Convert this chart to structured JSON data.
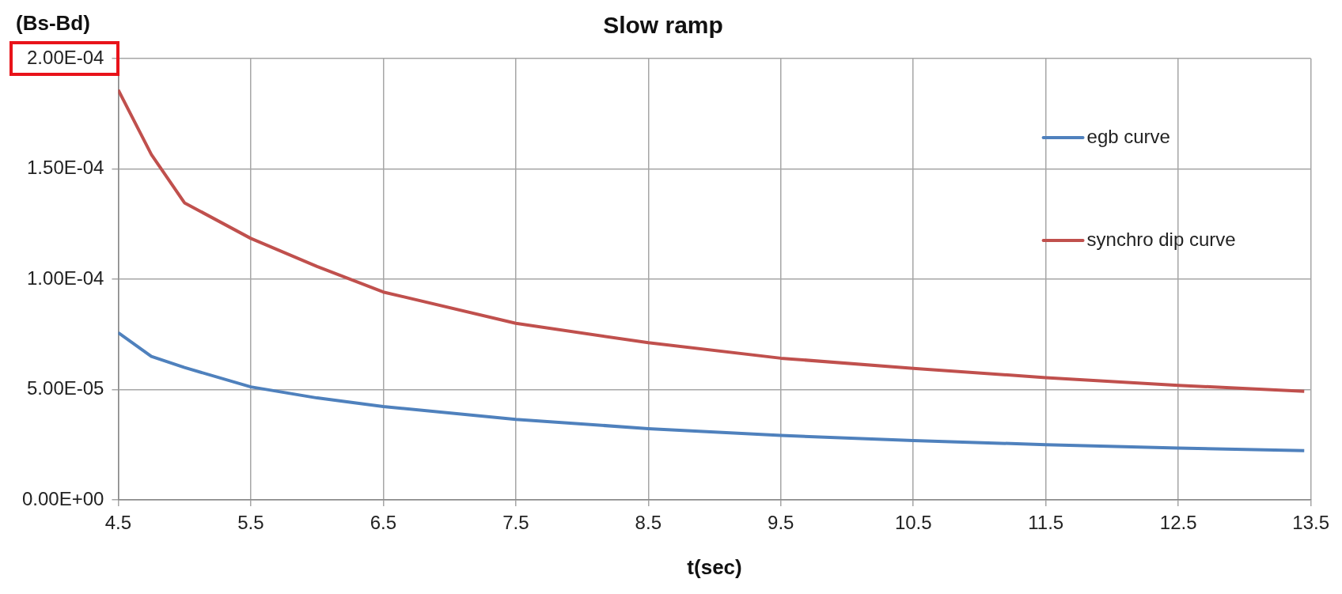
{
  "chart_data": {
    "type": "line",
    "title": "Slow ramp",
    "xlabel": "t(sec)",
    "ylabel": "(Bs-Bd)",
    "xlim": [
      4.5,
      13.5
    ],
    "xticks": [
      4.5,
      5.5,
      6.5,
      7.5,
      8.5,
      9.5,
      10.5,
      11.5,
      12.5,
      13.5
    ],
    "ylim": [
      0,
      0.0002
    ],
    "yticks": [
      {
        "value": 0,
        "label": "0.00E+00"
      },
      {
        "value": 5e-05,
        "label": "5.00E-05"
      },
      {
        "value": 0.0001,
        "label": "1.00E-04"
      },
      {
        "value": 0.00015,
        "label": "1.50E-04"
      },
      {
        "value": 0.0002,
        "label": "2.00E-04"
      }
    ],
    "grid": true,
    "legend": "top right",
    "marker": "none",
    "series": [
      {
        "name": "egb curve",
        "color": "#4f81bd",
        "x": [
          4.5,
          4.75,
          5.0,
          5.5,
          6.0,
          6.5,
          7.5,
          8.5,
          9.5,
          10.5,
          11.5,
          12.5,
          13.45
        ],
        "values": [
          7.58e-05,
          6.5e-05,
          6e-05,
          5.12e-05,
          4.62e-05,
          4.23e-05,
          3.65e-05,
          3.23e-05,
          2.92e-05,
          2.69e-05,
          2.5e-05,
          2.35e-05,
          2.23e-05
        ]
      },
      {
        "name": "synchro dip curve",
        "color": "#c0504d",
        "x": [
          4.5,
          4.75,
          5.0,
          5.5,
          6.0,
          6.5,
          7.5,
          8.5,
          9.5,
          10.5,
          11.5,
          12.5,
          13.45
        ],
        "values": [
          0.0001858,
          0.0001565,
          0.0001346,
          0.0001185,
          0.0001058,
          9.42e-05,
          8e-05,
          7.12e-05,
          6.42e-05,
          5.96e-05,
          5.54e-05,
          5.19e-05,
          4.92e-05
        ]
      }
    ]
  }
}
